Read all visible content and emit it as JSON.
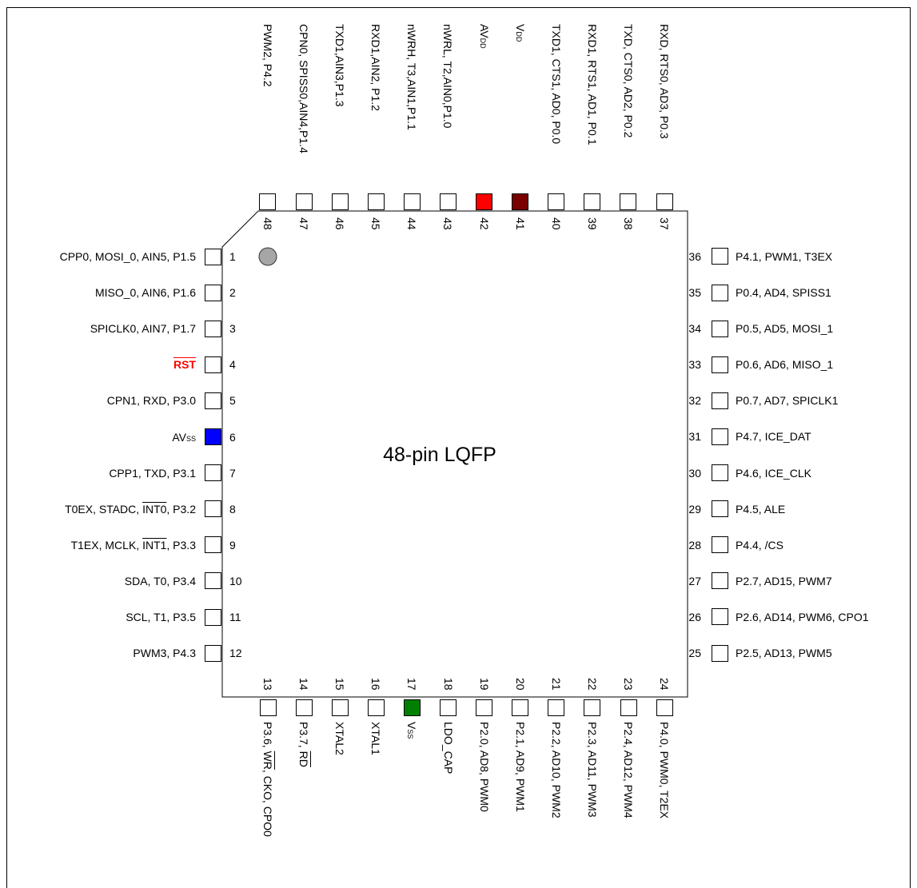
{
  "chip_label": "48-pin LQFP",
  "highlight_colors": {
    "avss": "#0000ff",
    "avdd": "#ff0000",
    "vdd": "#7a0000",
    "vss": "#008000",
    "rst_text": "#ff0000",
    "pin1_dot": "#a6a6a6"
  },
  "left_pins": [
    {
      "num": "1",
      "label": [
        {
          "t": "CPP0, MOSI_0, AIN5, P1.5"
        }
      ]
    },
    {
      "num": "2",
      "label": [
        {
          "t": "MISO_0, AIN6, P1.6"
        }
      ]
    },
    {
      "num": "3",
      "label": [
        {
          "t": "SPICLK0, AIN7, P1.7"
        }
      ]
    },
    {
      "num": "4",
      "label": [
        {
          "t": "RST",
          "s": "ov red"
        }
      ]
    },
    {
      "num": "5",
      "label": [
        {
          "t": "CPN1, RXD, P3.0"
        }
      ]
    },
    {
      "num": "6",
      "label": [
        {
          "t": "AV"
        },
        {
          "t": "SS",
          "s": "sub"
        }
      ],
      "color": "avss"
    },
    {
      "num": "7",
      "label": [
        {
          "t": "CPP1, TXD, P3.1"
        }
      ]
    },
    {
      "num": "8",
      "label": [
        {
          "t": "T0EX, STADC, "
        },
        {
          "t": "INT0",
          "s": "ov"
        },
        {
          "t": ", P3.2"
        }
      ]
    },
    {
      "num": "9",
      "label": [
        {
          "t": "T1EX, MCLK, "
        },
        {
          "t": "INT1",
          "s": "ov"
        },
        {
          "t": ", P3.3"
        }
      ]
    },
    {
      "num": "10",
      "label": [
        {
          "t": "SDA, T0, P3.4"
        }
      ]
    },
    {
      "num": "11",
      "label": [
        {
          "t": "SCL, T1, P3.5"
        }
      ]
    },
    {
      "num": "12",
      "label": [
        {
          "t": "PWM3, P4.3"
        }
      ]
    }
  ],
  "bottom_pins": [
    {
      "num": "13",
      "label": [
        {
          "t": "P3.6, "
        },
        {
          "t": "WR",
          "s": "ov"
        },
        {
          "t": ", CKO, CPO0"
        }
      ]
    },
    {
      "num": "14",
      "label": [
        {
          "t": "P3.7, "
        },
        {
          "t": "RD",
          "s": "ov"
        }
      ]
    },
    {
      "num": "15",
      "label": [
        {
          "t": "XTAL2"
        }
      ]
    },
    {
      "num": "16",
      "label": [
        {
          "t": "XTAL1"
        }
      ]
    },
    {
      "num": "17",
      "label": [
        {
          "t": "V"
        },
        {
          "t": "SS",
          "s": "sub"
        }
      ],
      "color": "vss"
    },
    {
      "num": "18",
      "label": [
        {
          "t": "LDO_CAP"
        }
      ]
    },
    {
      "num": "19",
      "label": [
        {
          "t": "P2.0, AD8, PWM0"
        }
      ]
    },
    {
      "num": "20",
      "label": [
        {
          "t": "P2.1, AD9, PWM1"
        }
      ]
    },
    {
      "num": "21",
      "label": [
        {
          "t": "P2.2, AD10, PWM2"
        }
      ]
    },
    {
      "num": "22",
      "label": [
        {
          "t": "P2.3, AD11, PWM3"
        }
      ]
    },
    {
      "num": "23",
      "label": [
        {
          "t": "P2.4, AD12, PWM4"
        }
      ]
    },
    {
      "num": "24",
      "label": [
        {
          "t": "P4.0, PWM0, T2EX"
        }
      ]
    }
  ],
  "right_pins": [
    {
      "num": "25",
      "label": [
        {
          "t": "P2.5, AD13, PWM5"
        }
      ]
    },
    {
      "num": "26",
      "label": [
        {
          "t": "P2.6, AD14, PWM6, CPO1"
        }
      ]
    },
    {
      "num": "27",
      "label": [
        {
          "t": "P2.7, AD15, PWM7"
        }
      ]
    },
    {
      "num": "28",
      "label": [
        {
          "t": "P4.4, /CS"
        }
      ]
    },
    {
      "num": "29",
      "label": [
        {
          "t": "P4.5, ALE"
        }
      ]
    },
    {
      "num": "30",
      "label": [
        {
          "t": "P4.6, ICE_CLK"
        }
      ]
    },
    {
      "num": "31",
      "label": [
        {
          "t": "P4.7, ICE_DAT"
        }
      ]
    },
    {
      "num": "32",
      "label": [
        {
          "t": "P0.7, AD7, SPICLK1"
        }
      ]
    },
    {
      "num": "33",
      "label": [
        {
          "t": "P0.6, AD6, MISO_1"
        }
      ]
    },
    {
      "num": "34",
      "label": [
        {
          "t": "P0.5, AD5, MOSI_1"
        }
      ]
    },
    {
      "num": "35",
      "label": [
        {
          "t": "P0.4, AD4, SPISS1"
        }
      ]
    },
    {
      "num": "36",
      "label": [
        {
          "t": "P4.1, PWM1, T3EX"
        }
      ]
    }
  ],
  "top_pins": [
    {
      "num": "37",
      "label": [
        {
          "t": "RXD, RTS0, AD3, P0.3"
        }
      ]
    },
    {
      "num": "38",
      "label": [
        {
          "t": "TXD, CTS0, AD2, P0.2"
        }
      ]
    },
    {
      "num": "39",
      "label": [
        {
          "t": "RXD1, RTS1, AD1, P0.1"
        }
      ]
    },
    {
      "num": "40",
      "label": [
        {
          "t": "TXD1, CTS1, AD0, P0.0"
        }
      ]
    },
    {
      "num": "41",
      "label": [
        {
          "t": "V"
        },
        {
          "t": "DD",
          "s": "sub"
        }
      ],
      "color": "vdd"
    },
    {
      "num": "42",
      "label": [
        {
          "t": "AV"
        },
        {
          "t": "DD",
          "s": "sub"
        }
      ],
      "color": "avdd"
    },
    {
      "num": "43",
      "label": [
        {
          "t": "nWRL, T2,AIN0,P1.0"
        }
      ]
    },
    {
      "num": "44",
      "label": [
        {
          "t": "nWRH, T3,AIN1,P1.1"
        }
      ]
    },
    {
      "num": "45",
      "label": [
        {
          "t": "RXD1,AIN2, P1.2"
        }
      ]
    },
    {
      "num": "46",
      "label": [
        {
          "t": "TXD1,AIN3,P1.3"
        }
      ]
    },
    {
      "num": "47",
      "label": [
        {
          "t": "CPN0, SPISS0,AIN4,P1.4"
        }
      ]
    },
    {
      "num": "48",
      "label": [
        {
          "t": "PWM2, P4.2"
        }
      ]
    }
  ]
}
